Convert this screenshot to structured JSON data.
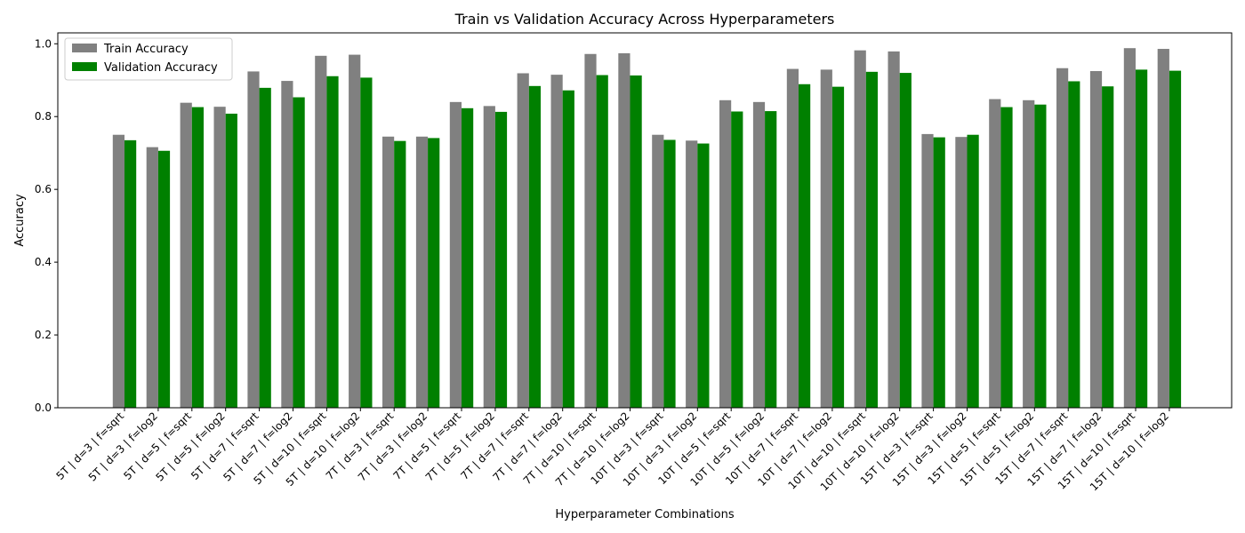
{
  "chart_data": {
    "type": "bar",
    "title": "Train vs Validation Accuracy Across Hyperparameters",
    "xlabel": "Hyperparameter Combinations",
    "ylabel": "Accuracy",
    "ylim": [
      0,
      1.03
    ],
    "yticks": [
      "0.0",
      "0.2",
      "0.4",
      "0.6",
      "0.8",
      "1.0"
    ],
    "grid": false,
    "legend_position": "top-left",
    "categories": [
      "5T | d=3 | f=sqrt",
      "5T | d=3 | f=log2",
      "5T | d=5 | f=sqrt",
      "5T | d=5 | f=log2",
      "5T | d=7 | f=sqrt",
      "5T | d=7 | f=log2",
      "5T | d=10 | f=sqrt",
      "5T | d=10 | f=log2",
      "7T | d=3 | f=sqrt",
      "7T | d=3 | f=log2",
      "7T | d=5 | f=sqrt",
      "7T | d=5 | f=log2",
      "7T | d=7 | f=sqrt",
      "7T | d=7 | f=log2",
      "7T | d=10 | f=sqrt",
      "7T | d=10 | f=log2",
      "10T | d=3 | f=sqrt",
      "10T | d=3 | f=log2",
      "10T | d=5 | f=sqrt",
      "10T | d=5 | f=log2",
      "10T | d=7 | f=sqrt",
      "10T | d=7 | f=log2",
      "10T | d=10 | f=sqrt",
      "10T | d=10 | f=log2",
      "15T | d=3 | f=sqrt",
      "15T | d=3 | f=log2",
      "15T | d=5 | f=sqrt",
      "15T | d=5 | f=log2",
      "15T | d=7 | f=sqrt",
      "15T | d=7 | f=log2",
      "15T | d=10 | f=sqrt",
      "15T | d=10 | f=log2"
    ],
    "series": [
      {
        "name": "Train Accuracy",
        "color": "#808080",
        "values": [
          0.75,
          0.716,
          0.838,
          0.827,
          0.924,
          0.898,
          0.967,
          0.97,
          0.745,
          0.745,
          0.84,
          0.829,
          0.919,
          0.915,
          0.972,
          0.974,
          0.75,
          0.734,
          0.845,
          0.84,
          0.931,
          0.929,
          0.982,
          0.979,
          0.752,
          0.744,
          0.848,
          0.845,
          0.933,
          0.925,
          0.988,
          0.986
        ]
      },
      {
        "name": "Validation Accuracy",
        "color": "#008000",
        "values": [
          0.735,
          0.706,
          0.826,
          0.808,
          0.879,
          0.853,
          0.911,
          0.907,
          0.733,
          0.741,
          0.823,
          0.813,
          0.884,
          0.872,
          0.914,
          0.913,
          0.736,
          0.726,
          0.814,
          0.815,
          0.889,
          0.882,
          0.923,
          0.92,
          0.743,
          0.75,
          0.826,
          0.833,
          0.897,
          0.883,
          0.929,
          0.926
        ]
      }
    ]
  }
}
